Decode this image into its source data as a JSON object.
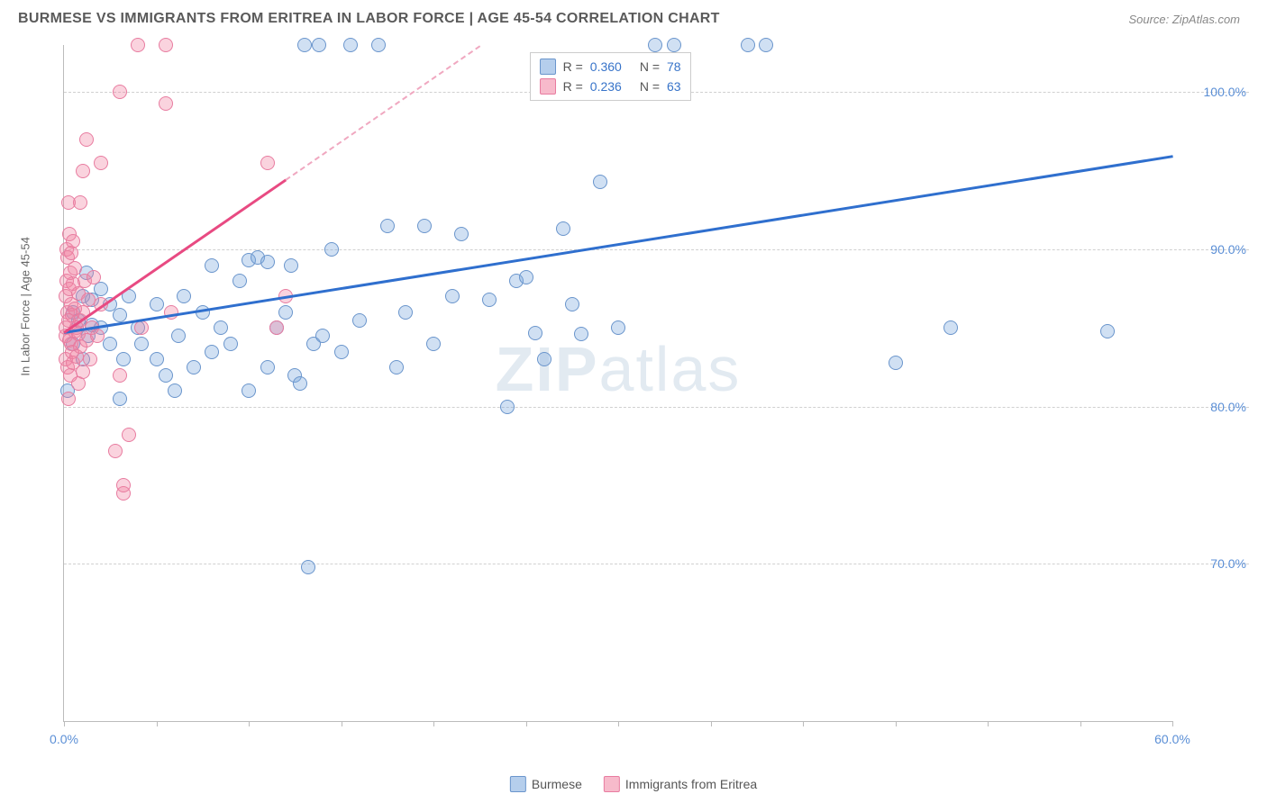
{
  "header": {
    "title": "BURMESE VS IMMIGRANTS FROM ERITREA IN LABOR FORCE | AGE 45-54 CORRELATION CHART",
    "source": "Source: ZipAtlas.com"
  },
  "chart": {
    "type": "scatter",
    "y_axis_title": "In Labor Force | Age 45-54",
    "xlim": [
      0,
      60
    ],
    "ylim": [
      60,
      103
    ],
    "x_ticks": [
      0,
      5,
      10,
      15,
      20,
      25,
      30,
      35,
      40,
      45,
      50,
      55,
      60
    ],
    "x_tick_labels": {
      "0": "0.0%",
      "60": "60.0%"
    },
    "y_gridlines": [
      70,
      80,
      90,
      100
    ],
    "y_tick_labels": {
      "70": "70.0%",
      "80": "80.0%",
      "90": "90.0%",
      "100": "100.0%"
    },
    "grid_color": "#d0d0d0",
    "axis_color": "#bbbbbb",
    "background_color": "#ffffff",
    "series": [
      {
        "key": "burmese",
        "label": "Burmese",
        "marker_fill": "rgba(120,165,220,0.35)",
        "marker_stroke": "#6a95cc",
        "line_color": "#2f6fce",
        "R": "0.360",
        "N": "78",
        "trend": {
          "x1": 0,
          "y1": 84.8,
          "x2": 60,
          "y2": 96.0
        },
        "points": [
          [
            0.2,
            81.0
          ],
          [
            0.5,
            84.0
          ],
          [
            0.5,
            86.0
          ],
          [
            0.8,
            85.5
          ],
          [
            1.0,
            87.0
          ],
          [
            1.0,
            83.0
          ],
          [
            1.2,
            88.5
          ],
          [
            1.3,
            84.5
          ],
          [
            1.5,
            85.2
          ],
          [
            1.5,
            86.8
          ],
          [
            2.0,
            85.0
          ],
          [
            2.0,
            87.5
          ],
          [
            2.5,
            84.0
          ],
          [
            2.5,
            86.5
          ],
          [
            3.0,
            85.8
          ],
          [
            3.0,
            80.5
          ],
          [
            3.2,
            83.0
          ],
          [
            3.5,
            87.0
          ],
          [
            4.0,
            85.0
          ],
          [
            4.2,
            84.0
          ],
          [
            5.0,
            83.0
          ],
          [
            5.0,
            86.5
          ],
          [
            5.5,
            82.0
          ],
          [
            6.0,
            81.0
          ],
          [
            6.2,
            84.5
          ],
          [
            6.5,
            87.0
          ],
          [
            7.0,
            82.5
          ],
          [
            7.5,
            86.0
          ],
          [
            8.0,
            83.5
          ],
          [
            8.0,
            89.0
          ],
          [
            8.5,
            85.0
          ],
          [
            9.0,
            84.0
          ],
          [
            9.5,
            88.0
          ],
          [
            10.0,
            81.0
          ],
          [
            10.0,
            89.3
          ],
          [
            10.5,
            89.5
          ],
          [
            11.0,
            89.2
          ],
          [
            11.0,
            82.5
          ],
          [
            11.5,
            85.0
          ],
          [
            12.0,
            86.0
          ],
          [
            12.3,
            89.0
          ],
          [
            12.5,
            82.0
          ],
          [
            12.8,
            81.5
          ],
          [
            13.0,
            103.0
          ],
          [
            13.2,
            69.8
          ],
          [
            13.5,
            84.0
          ],
          [
            13.8,
            103.0
          ],
          [
            14.0,
            84.5
          ],
          [
            14.5,
            90.0
          ],
          [
            15.0,
            83.5
          ],
          [
            15.5,
            103.0
          ],
          [
            16.0,
            85.5
          ],
          [
            17.0,
            103.0
          ],
          [
            17.5,
            91.5
          ],
          [
            18.0,
            82.5
          ],
          [
            18.5,
            86.0
          ],
          [
            19.5,
            91.5
          ],
          [
            20.0,
            84.0
          ],
          [
            21.0,
            87.0
          ],
          [
            21.5,
            91.0
          ],
          [
            23.0,
            86.8
          ],
          [
            24.0,
            80.0
          ],
          [
            24.5,
            88.0
          ],
          [
            25.0,
            88.2
          ],
          [
            25.5,
            84.7
          ],
          [
            26.0,
            83.0
          ],
          [
            27.0,
            91.3
          ],
          [
            27.5,
            86.5
          ],
          [
            28.0,
            84.6
          ],
          [
            29.0,
            94.3
          ],
          [
            30.0,
            85.0
          ],
          [
            32.0,
            103.0
          ],
          [
            33.0,
            103.0
          ],
          [
            37.0,
            103.0
          ],
          [
            38.0,
            103.0
          ],
          [
            45.0,
            82.8
          ],
          [
            48.0,
            85.0
          ],
          [
            56.5,
            84.8
          ]
        ]
      },
      {
        "key": "eritrea",
        "label": "Immigrants from Eritrea",
        "marker_fill": "rgba(240,130,160,0.35)",
        "marker_stroke": "#e87ca0",
        "line_color": "#e84a82",
        "R": "0.236",
        "N": "63",
        "trend": {
          "x1": 0,
          "y1": 84.8,
          "x2": 12,
          "y2": 94.5
        },
        "trend_ext": {
          "x1": 12,
          "y1": 94.5,
          "x2": 22.5,
          "y2": 103.0
        },
        "points": [
          [
            0.1,
            83.0
          ],
          [
            0.1,
            85.0
          ],
          [
            0.1,
            87.0
          ],
          [
            0.1,
            84.5
          ],
          [
            0.15,
            88.0
          ],
          [
            0.15,
            90.0
          ],
          [
            0.2,
            82.5
          ],
          [
            0.2,
            89.5
          ],
          [
            0.2,
            86.0
          ],
          [
            0.25,
            80.5
          ],
          [
            0.25,
            93.0
          ],
          [
            0.25,
            85.5
          ],
          [
            0.3,
            84.2
          ],
          [
            0.3,
            87.5
          ],
          [
            0.3,
            91.0
          ],
          [
            0.35,
            82.0
          ],
          [
            0.35,
            88.5
          ],
          [
            0.4,
            84.0
          ],
          [
            0.4,
            86.5
          ],
          [
            0.4,
            89.8
          ],
          [
            0.45,
            83.5
          ],
          [
            0.45,
            85.8
          ],
          [
            0.5,
            82.8
          ],
          [
            0.5,
            87.8
          ],
          [
            0.5,
            90.5
          ],
          [
            0.6,
            84.8
          ],
          [
            0.6,
            86.2
          ],
          [
            0.6,
            88.8
          ],
          [
            0.7,
            83.2
          ],
          [
            0.7,
            85.0
          ],
          [
            0.8,
            81.5
          ],
          [
            0.8,
            84.6
          ],
          [
            0.8,
            87.2
          ],
          [
            0.9,
            85.5
          ],
          [
            0.9,
            83.8
          ],
          [
            0.9,
            93.0
          ],
          [
            1.0,
            82.2
          ],
          [
            1.0,
            86.0
          ],
          [
            1.0,
            95.0
          ],
          [
            1.1,
            88.0
          ],
          [
            1.2,
            84.2
          ],
          [
            1.2,
            97.0
          ],
          [
            1.3,
            86.8
          ],
          [
            1.4,
            83.0
          ],
          [
            1.5,
            85.0
          ],
          [
            1.6,
            88.2
          ],
          [
            1.8,
            84.5
          ],
          [
            2.0,
            86.5
          ],
          [
            2.0,
            95.5
          ],
          [
            2.8,
            77.2
          ],
          [
            3.0,
            100.0
          ],
          [
            3.0,
            82.0
          ],
          [
            3.2,
            74.5
          ],
          [
            3.2,
            75.0
          ],
          [
            3.5,
            78.2
          ],
          [
            4.0,
            103.0
          ],
          [
            4.2,
            85.0
          ],
          [
            5.5,
            99.3
          ],
          [
            5.5,
            103.0
          ],
          [
            5.8,
            86.0
          ],
          [
            11.0,
            95.5
          ],
          [
            11.5,
            85.0
          ],
          [
            12.0,
            87.0
          ]
        ]
      }
    ],
    "legend_stats_pos": {
      "left_pct": 42,
      "top_pct": 1
    },
    "watermark": {
      "zip": "ZIP",
      "atlas": "atlas"
    }
  },
  "bottom_legend": {
    "items": [
      "Burmese",
      "Immigrants from Eritrea"
    ]
  }
}
